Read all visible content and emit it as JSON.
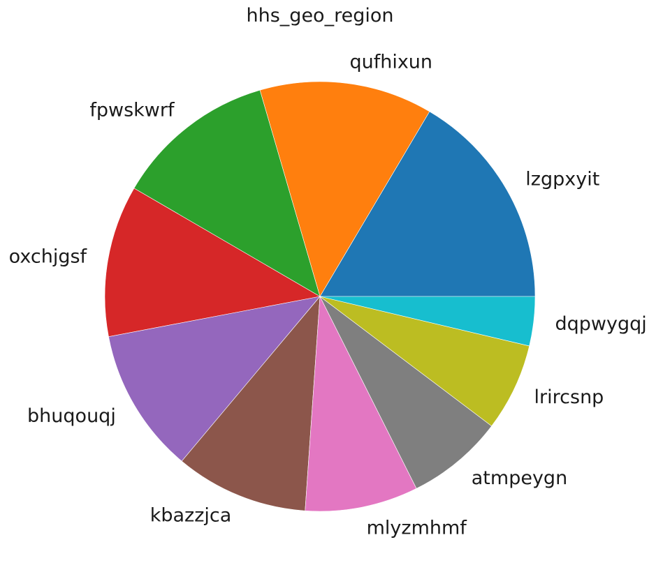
{
  "chart_data": {
    "type": "pie",
    "title": "hhs_geo_region",
    "categories": [
      "lzgpxyit",
      "qufhixun",
      "fpwskwrf",
      "oxchjgsf",
      "bhuqouqj",
      "kbazzjca",
      "mlyzmhmf",
      "atmpeygn",
      "lrircsnp",
      "dqpwygqj"
    ],
    "values": [
      16.5,
      13.0,
      12.1,
      11.4,
      10.9,
      10.0,
      8.5,
      7.3,
      6.6,
      3.7
    ],
    "colors": [
      "#1f77b4",
      "#ff7f0e",
      "#2ca02c",
      "#d62728",
      "#9467bd",
      "#8c564b",
      "#e377c2",
      "#7f7f7f",
      "#bcbd22",
      "#17becf"
    ],
    "start_angle": 0,
    "direction": "counterclockwise",
    "legend": "none"
  }
}
